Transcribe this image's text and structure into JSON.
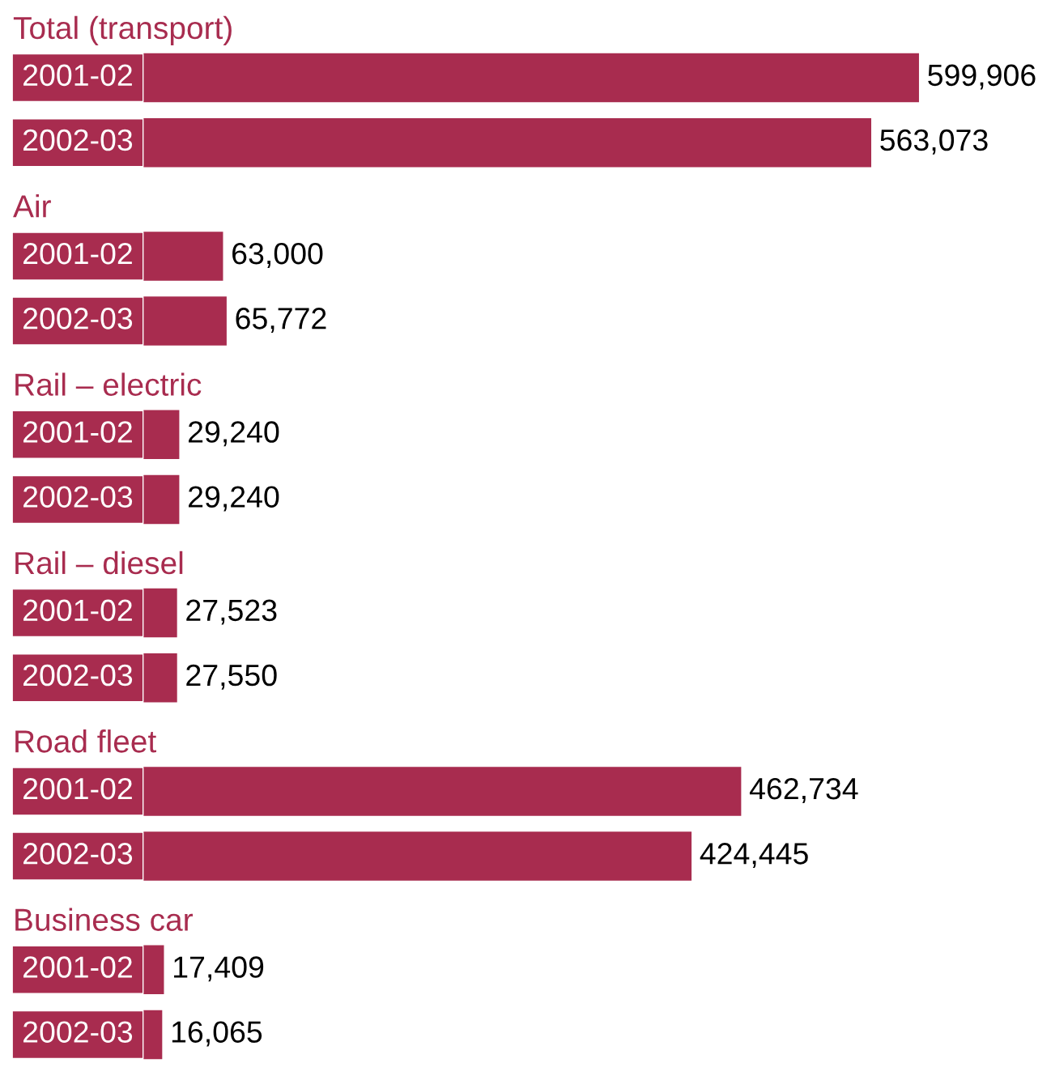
{
  "chart_data": [
    {
      "type": "bar",
      "orientation": "horizontal",
      "title": "Total (transport)",
      "categories": [
        "2001-02",
        "2002-03"
      ],
      "values": [
        599906,
        563073
      ],
      "value_labels": [
        "599,906",
        "563,073"
      ],
      "color": "#a82c4f"
    },
    {
      "type": "bar",
      "orientation": "horizontal",
      "title": "Air",
      "categories": [
        "2001-02",
        "2002-03"
      ],
      "values": [
        63000,
        65772
      ],
      "value_labels": [
        "63,000",
        "65,772"
      ],
      "color": "#a82c4f"
    },
    {
      "type": "bar",
      "orientation": "horizontal",
      "title": "Rail – electric",
      "categories": [
        "2001-02",
        "2002-03"
      ],
      "values": [
        29240,
        29240
      ],
      "value_labels": [
        "29,240",
        "29,240"
      ],
      "color": "#a82c4f"
    },
    {
      "type": "bar",
      "orientation": "horizontal",
      "title": "Rail – diesel",
      "categories": [
        "2001-02",
        "2002-03"
      ],
      "values": [
        27523,
        27550
      ],
      "value_labels": [
        "27,523",
        "27,550"
      ],
      "color": "#a82c4f"
    },
    {
      "type": "bar",
      "orientation": "horizontal",
      "title": "Road fleet",
      "categories": [
        "2001-02",
        "2002-03"
      ],
      "values": [
        462734,
        424445
      ],
      "value_labels": [
        "462,734",
        "424,445"
      ],
      "color": "#a82c4f"
    },
    {
      "type": "bar",
      "orientation": "horizontal",
      "title": "Business car",
      "categories": [
        "2001-02",
        "2002-03"
      ],
      "values": [
        17409,
        16065
      ],
      "value_labels": [
        "17,409",
        "16,065"
      ],
      "color": "#a82c4f"
    }
  ]
}
